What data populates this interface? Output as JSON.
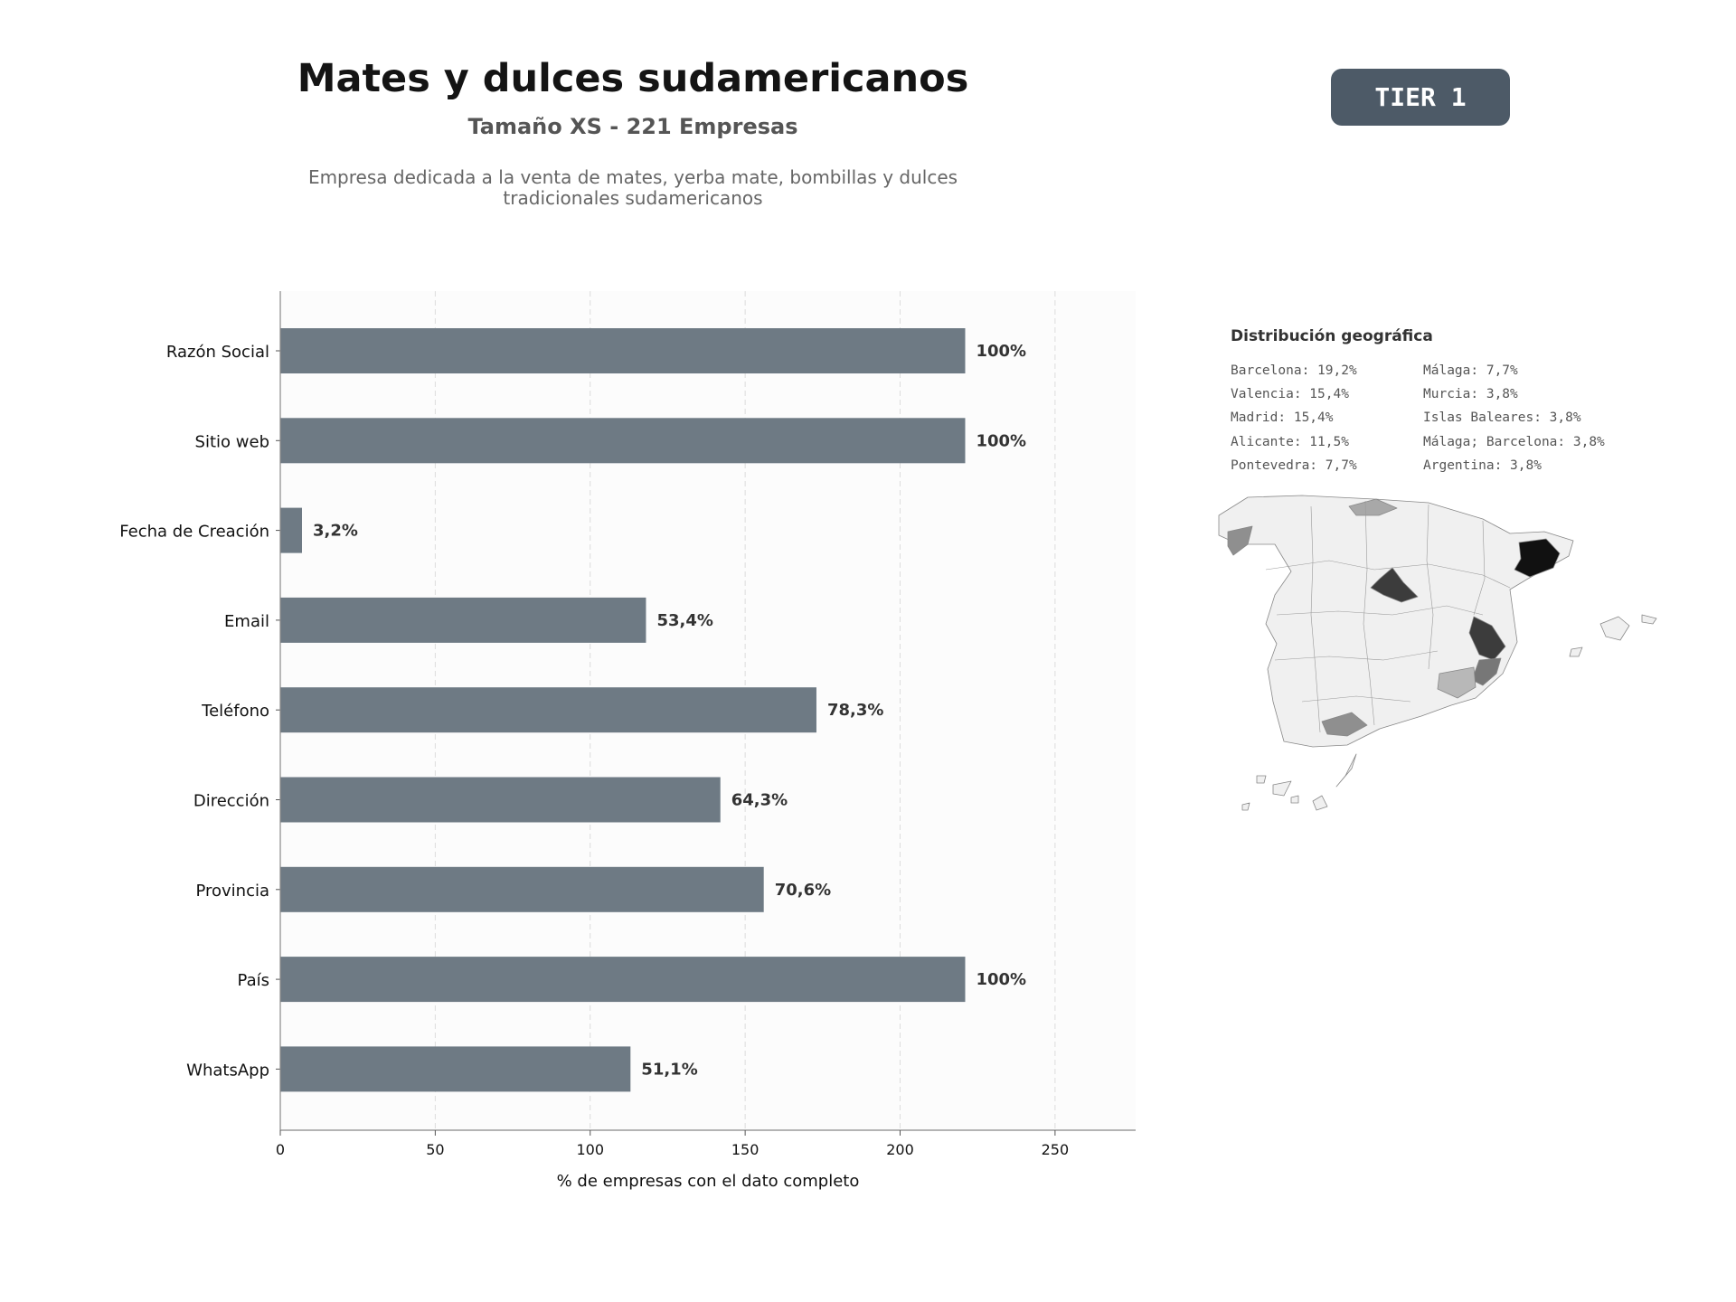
{
  "header": {
    "title": "Mates y dulces sudamericanos",
    "subtitle": "Tamaño XS - 221 Empresas",
    "description": "Empresa dedicada a la venta de mates, yerba mate, bombillas y dulces tradicionales sudamericanos",
    "tier": "TIER 1",
    "tier_color": "#4d5a67"
  },
  "chart_data": {
    "type": "bar",
    "orientation": "horizontal",
    "categories": [
      "Razón Social",
      "Sitio web",
      "Fecha de Creación",
      "Email",
      "Teléfono",
      "Dirección",
      "Provincia",
      "País",
      "WhatsApp"
    ],
    "values": [
      221,
      221,
      7,
      118,
      173,
      142,
      156,
      221,
      113
    ],
    "data_labels": [
      "100%",
      "100%",
      "3,2%",
      "53,4%",
      "78,3%",
      "64,3%",
      "70,6%",
      "100%",
      "51,1%"
    ],
    "xlabel": "% de empresas con el dato completo",
    "xticks": [
      0,
      50,
      100,
      150,
      200,
      250
    ],
    "xlim": [
      0,
      276
    ],
    "grid": "vertical dashed",
    "bar_color": "#6e7a84"
  },
  "geo": {
    "title": "Distribución geográfica",
    "col1": [
      "Barcelona: 19,2%",
      "Valencia: 15,4%",
      "Madrid: 15,4%",
      "Alicante: 11,5%",
      "Pontevedra: 7,7%"
    ],
    "col2": [
      "Málaga: 7,7%",
      "Murcia: 3,8%",
      "Islas Baleares: 3,8%",
      "Málaga; Barcelona: 3,8%",
      "Argentina: 3,8%"
    ]
  }
}
